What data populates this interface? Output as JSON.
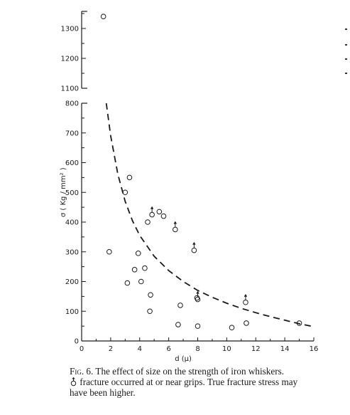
{
  "chart_data": {
    "type": "scatter",
    "title": "",
    "xlabel": "d (μ)",
    "ylabel": "σ ( Kg / mm² )",
    "xlim": [
      0,
      16
    ],
    "ylim_lower": [
      0,
      800
    ],
    "ylim_upper": [
      1100,
      1350
    ],
    "axis_break": true,
    "grid": false,
    "legend": "none",
    "x_ticks": [
      "0",
      "2",
      "4",
      "6",
      "8",
      "10",
      "12",
      "14",
      "16"
    ],
    "y_ticks_lower": [
      "0",
      "100",
      "200",
      "300",
      "400",
      "500",
      "600",
      "700",
      "800"
    ],
    "y_ticks_upper": [
      "1100",
      "1200",
      "1300"
    ],
    "series": [
      {
        "marker": "open-circle",
        "points": [
          {
            "x": 1.5,
            "y": 1340
          },
          {
            "x": 1.9,
            "y": 300
          },
          {
            "x": 3.0,
            "y": 500
          },
          {
            "x": 3.15,
            "y": 195
          },
          {
            "x": 3.3,
            "y": 550
          },
          {
            "x": 3.65,
            "y": 240
          },
          {
            "x": 3.9,
            "y": 295
          },
          {
            "x": 4.1,
            "y": 200
          },
          {
            "x": 4.35,
            "y": 245
          },
          {
            "x": 4.55,
            "y": 400
          },
          {
            "x": 4.7,
            "y": 100
          },
          {
            "x": 4.75,
            "y": 155
          },
          {
            "x": 5.35,
            "y": 435
          },
          {
            "x": 5.65,
            "y": 420
          },
          {
            "x": 6.65,
            "y": 55
          },
          {
            "x": 6.8,
            "y": 120
          },
          {
            "x": 7.95,
            "y": 145
          },
          {
            "x": 8.0,
            "y": 50
          },
          {
            "x": 10.35,
            "y": 45
          },
          {
            "x": 11.35,
            "y": 60
          },
          {
            "x": 15.0,
            "y": 60
          }
        ]
      },
      {
        "marker": "open-circle-arrow",
        "points": [
          {
            "x": 4.85,
            "y": 425
          },
          {
            "x": 6.45,
            "y": 375
          },
          {
            "x": 7.75,
            "y": 305
          },
          {
            "x": 8.0,
            "y": 140
          },
          {
            "x": 11.3,
            "y": 130
          }
        ]
      },
      {
        "marker": "dashed-curve",
        "points": [
          {
            "x": 1.7,
            "y": 800
          },
          {
            "x": 2.0,
            "y": 690
          },
          {
            "x": 2.5,
            "y": 560
          },
          {
            "x": 3.0,
            "y": 470
          },
          {
            "x": 3.5,
            "y": 405
          },
          {
            "x": 4.0,
            "y": 355
          },
          {
            "x": 5.0,
            "y": 285
          },
          {
            "x": 6.0,
            "y": 237
          },
          {
            "x": 7.0,
            "y": 200
          },
          {
            "x": 8.0,
            "y": 170
          },
          {
            "x": 9.0,
            "y": 147
          },
          {
            "x": 10.0,
            "y": 127
          },
          {
            "x": 11.0,
            "y": 110
          },
          {
            "x": 12.0,
            "y": 95
          },
          {
            "x": 13.0,
            "y": 82
          },
          {
            "x": 14.0,
            "y": 70
          },
          {
            "x": 15.0,
            "y": 58
          },
          {
            "x": 15.8,
            "y": 50
          }
        ]
      }
    ]
  },
  "caption": {
    "fig_label": "Fig. 6.",
    "line1": " The effect of size on the strength of iron whiskers.",
    "line2": "fracture occurred at or near grips. True fracture stress may",
    "line3": "have been higher."
  }
}
